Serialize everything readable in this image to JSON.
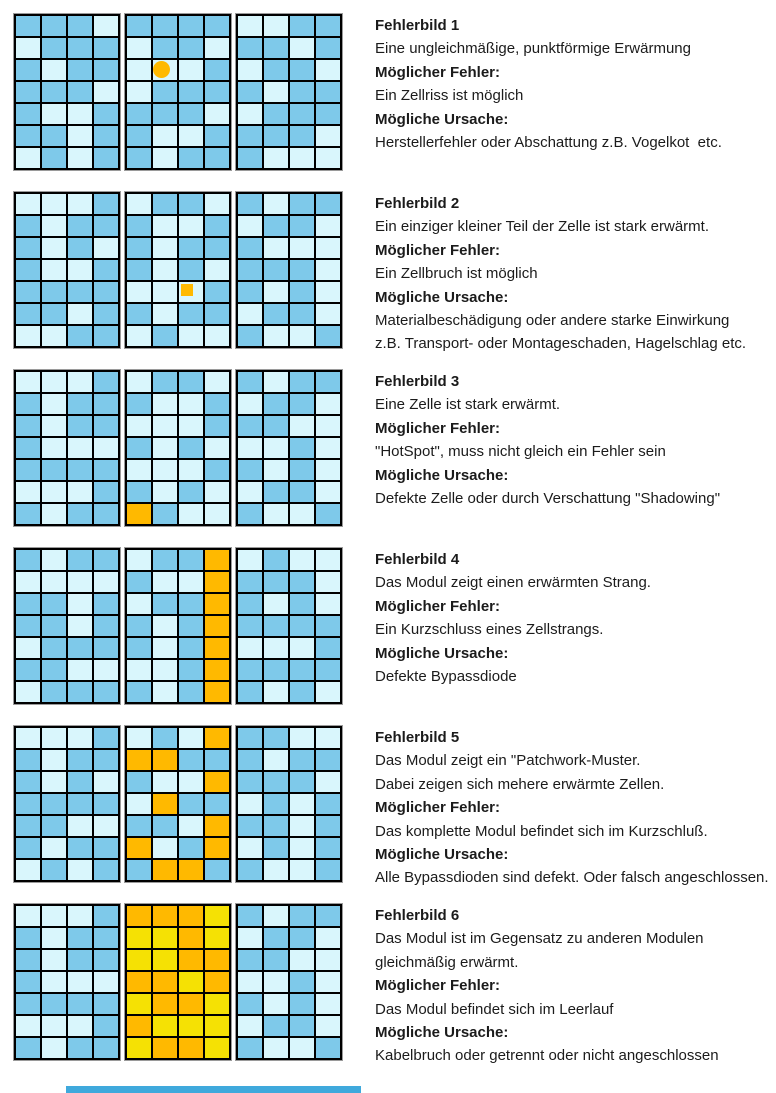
{
  "colors": {
    "B": "#7ec9ea",
    "L": "#d9f6fc",
    "O": "#ffb900",
    "Y": "#f5e104",
    "grid_line": "#000000",
    "block_outline": "#9a9a9a",
    "footer_bar": "#3fa9dc",
    "text": "#1b1b1b"
  },
  "color_legend": {
    "B": "blue-cell",
    "L": "light-cyan-cell",
    "O": "orange-hot-cell",
    "Y": "yellow-hot-cell"
  },
  "footer": {
    "bar": "partial-blue-bar"
  },
  "figures": [
    {
      "title": "Fehlerbild 1",
      "lines": [
        {
          "text": "Eine ungleichmäßige, punktförmige Erwärmung",
          "bold": false
        },
        {
          "text": "Möglicher Fehler:",
          "bold": true
        },
        {
          "text": "Ein Zellriss ist möglich",
          "bold": false
        },
        {
          "text": "Mögliche Ursache:",
          "bold": true
        },
        {
          "text": "Herstellerfehler oder Abschattung z.B. Vogelkot  etc.",
          "bold": false
        }
      ],
      "blocks": [
        [
          "BBBL",
          "LBBB",
          "BLBB",
          "BBBL",
          "BLLB",
          "BBLB",
          "LBLB"
        ],
        [
          "BBBB",
          "LBBL",
          "LLLB",
          "LBBB",
          "BBBL",
          "BLLB",
          "BLBB"
        ],
        [
          "LLBB",
          "BBLB",
          "LBBL",
          "BLBB",
          "LBBB",
          "BBBL",
          "BLLL"
        ]
      ],
      "markers": [
        {
          "block": 1,
          "row": 2,
          "col": 1,
          "type": "circle"
        }
      ]
    },
    {
      "title": "Fehlerbild 2",
      "lines": [
        {
          "text": "Ein einziger kleiner Teil der Zelle ist stark erwärmt.",
          "bold": false
        },
        {
          "text": "Möglicher Fehler:",
          "bold": true
        },
        {
          "text": "Ein Zellbruch ist möglich",
          "bold": false
        },
        {
          "text": "Mögliche Ursache:",
          "bold": true
        },
        {
          "text": "Materialbeschädigung oder andere starke Einwirkung",
          "bold": false
        },
        {
          "text": "z.B. Transport- oder Montageschaden, Hagelschlag etc.",
          "bold": false
        }
      ],
      "blocks": [
        [
          "LLLB",
          "BLBB",
          "BLBL",
          "BLLB",
          "BBBB",
          "BBLB",
          "LLBB"
        ],
        [
          "LBBL",
          "BLLB",
          "BLBB",
          "BLBL",
          "LLLB",
          "BLBB",
          "LBLL"
        ],
        [
          "BLBB",
          "LBBL",
          "BLLL",
          "BBBL",
          "BLBL",
          "LBBL",
          "BLLB"
        ]
      ],
      "markers": [
        {
          "block": 1,
          "row": 4,
          "col": 2,
          "type": "square"
        }
      ]
    },
    {
      "title": "Fehlerbild 3",
      "lines": [
        {
          "text": "Eine Zelle ist stark erwärmt.",
          "bold": false
        },
        {
          "text": "Möglicher Fehler:",
          "bold": true
        },
        {
          "text": "\"HotSpot\", muss nicht gleich ein Fehler sein",
          "bold": false
        },
        {
          "text": "Mögliche Ursache:",
          "bold": true
        },
        {
          "text": "Defekte Zelle oder durch Verschattung \"Shadowing\"",
          "bold": false
        }
      ],
      "blocks": [
        [
          "LLLB",
          "BLBB",
          "BLBB",
          "BLLL",
          "BBBB",
          "LLLB",
          "BLBB"
        ],
        [
          "LBBL",
          "BLLB",
          "LLLB",
          "BLBL",
          "LLLB",
          "BLBL",
          "OBLL"
        ],
        [
          "BLBB",
          "LBBL",
          "BBLL",
          "LLBL",
          "BLBL",
          "LBBL",
          "BLLB"
        ]
      ],
      "markers": []
    },
    {
      "title": "Fehlerbild 4",
      "lines": [
        {
          "text": "Das Modul zeigt einen erwärmten Strang.",
          "bold": false
        },
        {
          "text": "Möglicher Fehler:",
          "bold": true
        },
        {
          "text": "Ein Kurzschluss eines Zellstrangs.",
          "bold": false
        },
        {
          "text": "Mögliche Ursache:",
          "bold": true
        },
        {
          "text": "Defekte Bypassdiode",
          "bold": false
        }
      ],
      "blocks": [
        [
          "BLBB",
          "LLLL",
          "BBLB",
          "BBLB",
          "LBBB",
          "BBLL",
          "LBBB"
        ],
        [
          "LBBO",
          "BLLO",
          "LBBO",
          "BLBO",
          "BLBO",
          "LLBO",
          "BLBO"
        ],
        [
          "LBLL",
          "BBBL",
          "BLBL",
          "BBBB",
          "LLLB",
          "BBBB",
          "BLBL"
        ]
      ],
      "markers": []
    },
    {
      "title": "Fehlerbild 5",
      "lines": [
        {
          "text": "Das Modul zeigt ein \"Patchwork-Muster.",
          "bold": false
        },
        {
          "text": "Dabei zeigen sich mehere erwärmte Zellen.",
          "bold": false
        },
        {
          "text": "Möglicher Fehler:",
          "bold": true
        },
        {
          "text": "Das komplette Modul befindet sich im Kurzschluß.",
          "bold": false
        },
        {
          "text": "Mögliche Ursache:",
          "bold": true
        },
        {
          "text": "Alle Bypassdioden sind defekt. Oder falsch angeschlossen.",
          "bold": false
        }
      ],
      "blocks": [
        [
          "LLLB",
          "BLBB",
          "BLBL",
          "BBBB",
          "BBLL",
          "BLBB",
          "LBLB"
        ],
        [
          "LBLO",
          "OOBB",
          "BLLO",
          "LOBB",
          "BBLO",
          "OLBO",
          "BOOB"
        ],
        [
          "BBLL",
          "BLBB",
          "BBBL",
          "LBLB",
          "BBLB",
          "LBLB",
          "BLLB"
        ]
      ],
      "markers": []
    },
    {
      "title": "Fehlerbild 6",
      "lines": [
        {
          "text": "Das Modul ist im Gegensatz zu anderen Modulen",
          "bold": false
        },
        {
          "text": "gleichmäßig erwärmt.",
          "bold": false
        },
        {
          "text": "Möglicher Fehler:",
          "bold": true
        },
        {
          "text": "Das Modul befindet sich im Leerlauf",
          "bold": false
        },
        {
          "text": "Mögliche Ursache:",
          "bold": true
        },
        {
          "text": "Kabelbruch oder getrennt oder nicht angeschlossen",
          "bold": false
        }
      ],
      "blocks": [
        [
          "LLLB",
          "BLBB",
          "BLBB",
          "BLLL",
          "BBBB",
          "LLLB",
          "BLBB"
        ],
        [
          "OOOY",
          "YYOY",
          "YYOO",
          "OOYO",
          "YOOY",
          "OYYY",
          "YOOY"
        ],
        [
          "BLBB",
          "LBBL",
          "BBLL",
          "LLBL",
          "BLBL",
          "LBBL",
          "BLLB"
        ]
      ],
      "markers": []
    }
  ]
}
